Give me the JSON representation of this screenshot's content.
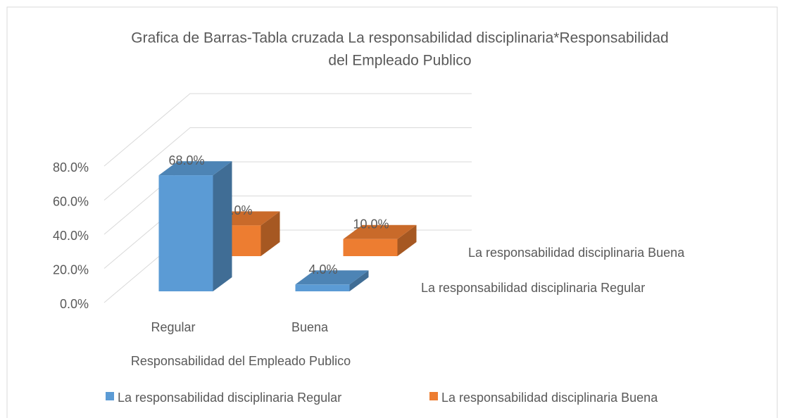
{
  "chart_data": {
    "type": "bar3d",
    "title": [
      "Grafica de Barras-Tabla cruzada La responsabilidad disciplinaria*Responsabilidad",
      "del Empleado Publico"
    ],
    "x_label": "Responsabilidad del Empleado Publico",
    "categories": [
      "Regular",
      "Buena"
    ],
    "series": [
      {
        "name": "La responsabilidad disciplinaria Regular",
        "color": "#5b9bd5",
        "values": [
          68,
          4
        ],
        "value_labels": [
          "68.0%",
          "4.0%"
        ]
      },
      {
        "name": "La responsabilidad disciplinaria Buena",
        "color": "#ed7d31",
        "values": [
          18,
          10
        ],
        "value_labels": [
          "18.0%",
          "10.0%"
        ]
      }
    ],
    "ylim": [
      0,
      80
    ],
    "yticks": [
      {
        "value": 0,
        "label": "0.0%"
      },
      {
        "value": 20,
        "label": "20.0%"
      },
      {
        "value": 40,
        "label": "40.0%"
      },
      {
        "value": 60,
        "label": "60.0%"
      },
      {
        "value": 80,
        "label": "80.0%"
      }
    ],
    "grid": true,
    "legend": "bottom"
  }
}
